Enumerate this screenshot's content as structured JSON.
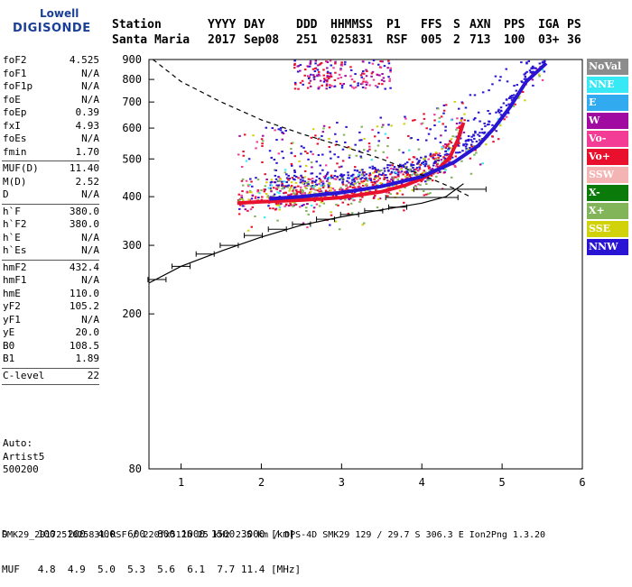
{
  "logo": {
    "top": "Lowell",
    "main": "DIGISONDE"
  },
  "header": {
    "labels": [
      "Station",
      "YYYY",
      "DAY",
      "DDD",
      "HHMMSS",
      "P1",
      "FFS",
      "S",
      "AXN",
      "PPS",
      "IGA",
      "PS"
    ],
    "values": [
      "Santa Maria",
      "2017",
      "Sep08",
      "251",
      "025831",
      "RSF",
      "005",
      "2",
      "713",
      "100",
      "03+",
      "36"
    ]
  },
  "params": [
    {
      "name": "foF2",
      "value": "4.525"
    },
    {
      "name": "foF1",
      "value": "N/A"
    },
    {
      "name": "foF1p",
      "value": "N/A"
    },
    {
      "name": "foE",
      "value": "N/A"
    },
    {
      "name": "foEp",
      "value": "0.39"
    },
    {
      "name": "fxI",
      "value": "4.93"
    },
    {
      "name": "foEs",
      "value": "N/A"
    },
    {
      "name": "fmin",
      "value": "1.70"
    },
    {
      "sep": true
    },
    {
      "name": "MUF(D)",
      "value": "11.40"
    },
    {
      "name": "M(D)",
      "value": "2.52"
    },
    {
      "name": "D",
      "value": "N/A"
    },
    {
      "sep": true
    },
    {
      "name": "h`F",
      "value": "380.0"
    },
    {
      "name": "h`F2",
      "value": "380.0"
    },
    {
      "name": "h`E",
      "value": "N/A"
    },
    {
      "name": "h`Es",
      "value": "N/A"
    },
    {
      "sep": true
    },
    {
      "name": "hmF2",
      "value": "432.4"
    },
    {
      "name": "hmF1",
      "value": "N/A"
    },
    {
      "name": "hmE",
      "value": "110.0"
    },
    {
      "name": "yF2",
      "value": "105.2"
    },
    {
      "name": "yF1",
      "value": "N/A"
    },
    {
      "name": "yE",
      "value": "20.0"
    },
    {
      "name": "B0",
      "value": "108.5"
    },
    {
      "name": "B1",
      "value": "1.89"
    },
    {
      "sep": true
    },
    {
      "name": "C-level",
      "value": "22"
    },
    {
      "sep": true
    }
  ],
  "auto": [
    "Auto:",
    "Artist5",
    "500200"
  ],
  "legend": [
    {
      "label": "NoVal",
      "color": "#8c8c8c"
    },
    {
      "label": "NNE",
      "color": "#38e8f5"
    },
    {
      "label": "E",
      "color": "#32aaf0"
    },
    {
      "label": "W",
      "color": "#a00aa0"
    },
    {
      "label": "Vo-",
      "color": "#f23c96"
    },
    {
      "label": "Vo+",
      "color": "#e8102c"
    },
    {
      "label": "SSW",
      "color": "#f5b4b4"
    },
    {
      "label": "X-",
      "color": "#0a7a0a"
    },
    {
      "label": "X+",
      "color": "#82b45a"
    },
    {
      "label": "SSE",
      "color": "#d2d20a"
    },
    {
      "label": "NNW",
      "color": "#2814d2"
    }
  ],
  "footer": {
    "d_row": "D     100  200  400  600  800 1000 1500 3000 [km]",
    "muf_row": "MUF   4.8  4.9  5.0  5.3  5.6  6.1  7.7 11.4 [MHz]",
    "info": "SMK29_2017251025831.RSF / 220fx512h 25 kHz 2.5 km / DPS-4D SMK29 129 / 29.7 S 306.3 E Ion2Png 1.3.20"
  },
  "chart_data": {
    "type": "scatter",
    "xlim": [
      0.6,
      6.0
    ],
    "ylim": [
      80,
      900
    ],
    "yscale": "log",
    "x_ticks": [
      "1",
      "2",
      "3",
      "4",
      "5",
      "6"
    ],
    "y_ticks": [
      "80",
      "200",
      "300",
      "400",
      "500",
      "600",
      "700",
      "800",
      "900"
    ],
    "grid": false,
    "legend_position": "right",
    "profile": [
      [
        0.6,
        240
      ],
      [
        1.0,
        265
      ],
      [
        1.5,
        290
      ],
      [
        2.0,
        315
      ],
      [
        2.5,
        338
      ],
      [
        3.0,
        355
      ],
      [
        3.5,
        370
      ],
      [
        4.0,
        385
      ],
      [
        4.3,
        400
      ],
      [
        4.52,
        432
      ]
    ],
    "dashed_curve": [
      [
        0.65,
        900
      ],
      [
        1.0,
        790
      ],
      [
        1.5,
        700
      ],
      [
        2.0,
        630
      ],
      [
        2.5,
        580
      ],
      [
        3.0,
        540
      ],
      [
        3.5,
        500
      ],
      [
        4.0,
        455
      ],
      [
        4.4,
        420
      ],
      [
        4.6,
        400
      ]
    ],
    "trace_o": [
      [
        1.7,
        385
      ],
      [
        2.0,
        388
      ],
      [
        2.5,
        392
      ],
      [
        3.0,
        398
      ],
      [
        3.5,
        412
      ],
      [
        3.8,
        428
      ],
      [
        4.0,
        445
      ],
      [
        4.2,
        470
      ],
      [
        4.35,
        505
      ],
      [
        4.45,
        560
      ],
      [
        4.52,
        620
      ]
    ],
    "trace_x": [
      [
        2.1,
        395
      ],
      [
        2.5,
        400
      ],
      [
        3.0,
        410
      ],
      [
        3.5,
        425
      ],
      [
        4.0,
        450
      ],
      [
        4.4,
        490
      ],
      [
        4.7,
        540
      ],
      [
        4.9,
        600
      ],
      [
        5.1,
        680
      ],
      [
        5.3,
        790
      ],
      [
        5.55,
        880
      ]
    ],
    "error_bars": [
      [
        0.7,
        245
      ],
      [
        1.0,
        265
      ],
      [
        1.3,
        285
      ],
      [
        1.6,
        300
      ],
      [
        1.9,
        318
      ],
      [
        2.2,
        330
      ],
      [
        2.5,
        340
      ],
      [
        2.8,
        350
      ],
      [
        3.1,
        360
      ],
      [
        3.4,
        368
      ],
      [
        3.7,
        376
      ],
      [
        4.0,
        398
      ],
      [
        4.35,
        418
      ]
    ]
  }
}
